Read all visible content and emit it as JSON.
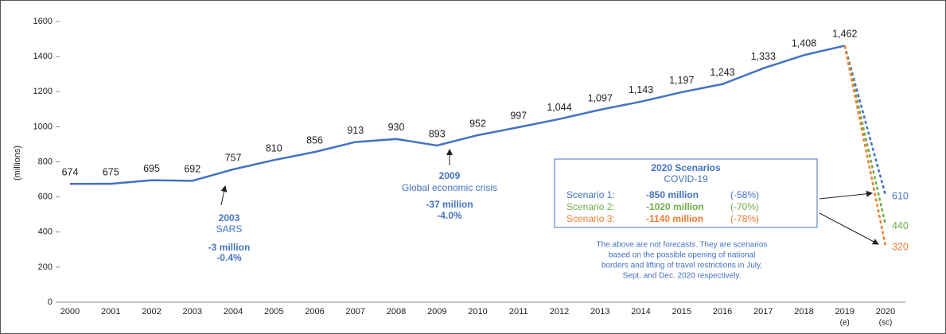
{
  "chart_data": {
    "type": "line",
    "y_label": "(millions)",
    "categories": [
      "2000",
      "2001",
      "2002",
      "2003",
      "2004",
      "2005",
      "2006",
      "2007",
      "2008",
      "2009",
      "2010",
      "2011",
      "2012",
      "2013",
      "2014",
      "2015",
      "2016",
      "2017",
      "2018",
      "2019",
      "2020"
    ],
    "category_notes": [
      null,
      null,
      null,
      null,
      null,
      null,
      null,
      null,
      null,
      null,
      null,
      null,
      null,
      null,
      null,
      null,
      null,
      null,
      null,
      "(e)",
      "(sc)"
    ],
    "ylim": [
      0,
      1600
    ],
    "yticks": [
      0,
      200,
      400,
      600,
      800,
      1000,
      1200,
      1400,
      1600
    ],
    "grid": false,
    "series": [
      {
        "name": "Actual",
        "color": "#4472c4",
        "dashed": false,
        "values": [
          674,
          675,
          695,
          692,
          757,
          810,
          856,
          913,
          930,
          893,
          952,
          997,
          1044,
          1097,
          1143,
          1197,
          1243,
          1333,
          1408,
          1462,
          null
        ],
        "value_labels": [
          "674",
          "675",
          "695",
          "692",
          "757",
          "810",
          "856",
          "913",
          "930",
          "893",
          "952",
          "997",
          "1,044",
          "1,097",
          "1,143",
          "1,197",
          "1,243",
          "1,333",
          "1,408",
          "1,462",
          null
        ]
      },
      {
        "name": "Scenario 1:",
        "color": "#4472c4",
        "dashed": true,
        "values": [
          null,
          null,
          null,
          null,
          null,
          null,
          null,
          null,
          null,
          null,
          null,
          null,
          null,
          null,
          null,
          null,
          null,
          null,
          null,
          1462,
          610
        ]
      },
      {
        "name": "Scenario 2:",
        "color": "#70ad47",
        "dashed": true,
        "values": [
          null,
          null,
          null,
          null,
          null,
          null,
          null,
          null,
          null,
          null,
          null,
          null,
          null,
          null,
          null,
          null,
          null,
          null,
          null,
          1462,
          440
        ]
      },
      {
        "name": "Scenario 3:",
        "color": "#ed7d31",
        "dashed": true,
        "values": [
          null,
          null,
          null,
          null,
          null,
          null,
          null,
          null,
          null,
          null,
          null,
          null,
          null,
          null,
          null,
          null,
          null,
          null,
          null,
          1462,
          320
        ]
      }
    ],
    "annotations": [
      {
        "lines": [
          "2003",
          "SARS",
          "-3 million",
          "-0.4%"
        ]
      },
      {
        "lines": [
          "2009",
          "Global economic crisis",
          "-37 million",
          "-4.0%"
        ]
      }
    ],
    "scenario_box": {
      "title": "2020 Scenarios",
      "subtitle": "COVID-19",
      "items": [
        {
          "change": "-850 million",
          "pct": "(-58%)"
        },
        {
          "change": "-1020 million",
          "pct": "(-70%)"
        },
        {
          "change": "-1140 million",
          "pct": "(-78%)"
        }
      ],
      "note": [
        "The above are not forecasts. They are scenarios",
        "based on the possible opening of national",
        "borders and lifting of travel restrictions in July,",
        "Sept. and Dec. 2020 respectively."
      ]
    }
  }
}
